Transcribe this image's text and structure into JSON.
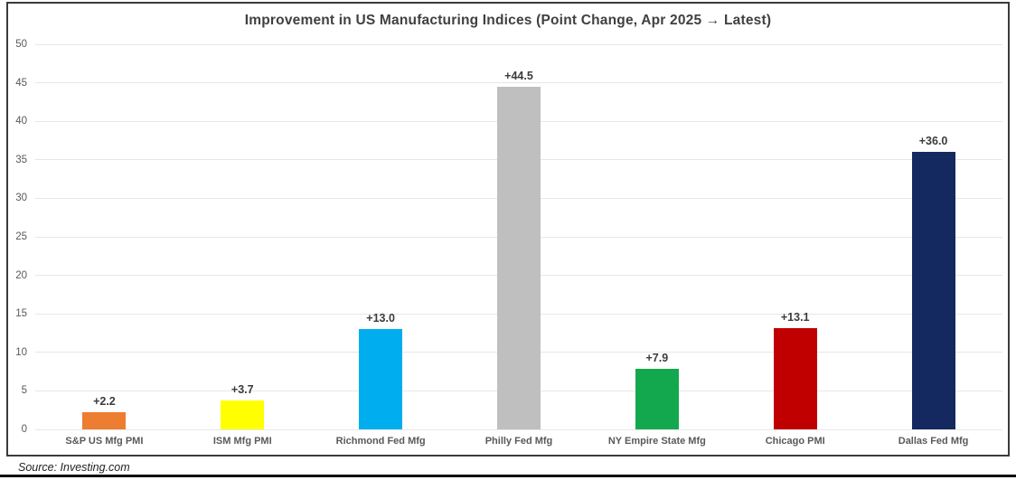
{
  "chart_data": {
    "type": "bar",
    "title": "Improvement in US Manufacturing Indices (Point Change, Apr 2025 → Latest)",
    "categories": [
      "S&P US Mfg PMI",
      "ISM Mfg PMI",
      "Richmond Fed Mfg",
      "Philly Fed Mfg",
      "NY Empire State Mfg",
      "Chicago PMI",
      "Dallas Fed Mfg"
    ],
    "values": [
      2.2,
      3.7,
      13.0,
      44.5,
      7.9,
      13.1,
      36.0
    ],
    "data_labels": [
      "+2.2",
      "+3.7",
      "+13.0",
      "+44.5",
      "+7.9",
      "+13.1",
      "+36.0"
    ],
    "bar_colors": [
      "#ED7D31",
      "#FFFF00",
      "#00AEEF",
      "#BFBFBF",
      "#14A84E",
      "#C00000",
      "#13295F"
    ],
    "xlabel": "",
    "ylabel": "",
    "ylim": [
      0,
      50
    ],
    "yticks": [
      0,
      5,
      10,
      15,
      20,
      25,
      30,
      35,
      40,
      45,
      50
    ],
    "grid": true,
    "legend": false
  },
  "source": {
    "text": "Source: Investing.com"
  },
  "colors": {
    "background": "#FFFFFF",
    "frame_border": "#3B3B3B",
    "grid": "#E7E7E7",
    "title": "#404040",
    "tick_label": "#595959",
    "category_label": "#595959",
    "value_label": "#3B3B3B",
    "bottom_rule": "#000000"
  }
}
